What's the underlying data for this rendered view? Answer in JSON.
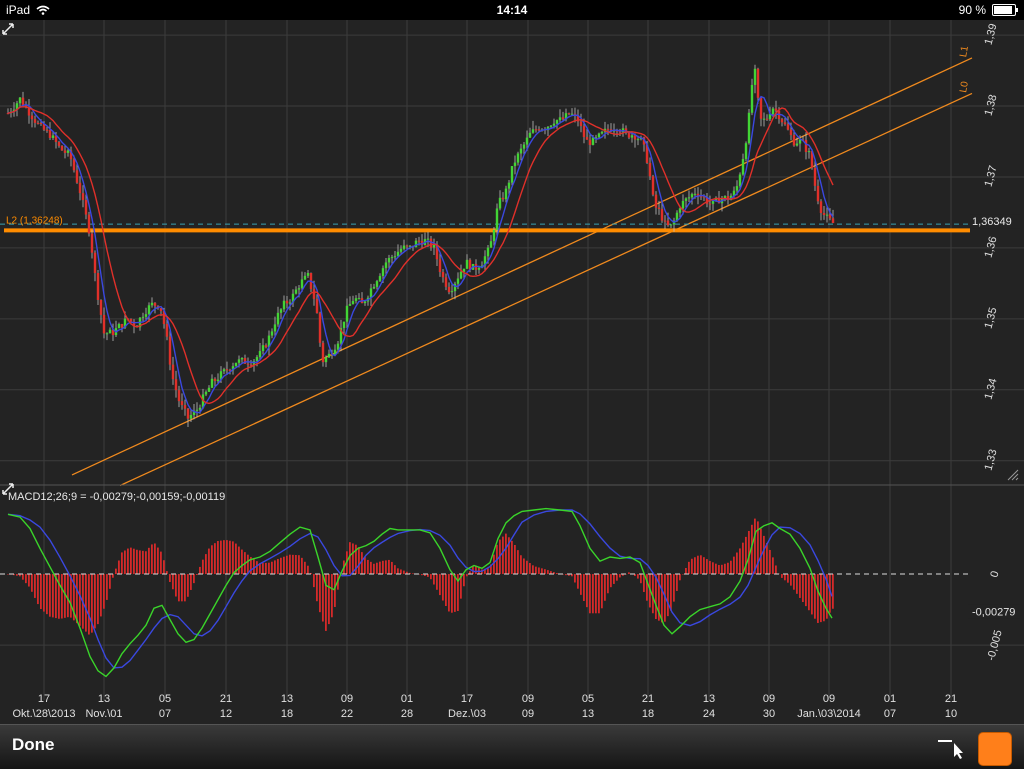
{
  "status_bar": {
    "device": "iPad",
    "time": "14:14",
    "battery": "90 %",
    "battery_level": 0.9
  },
  "toolbar": {
    "done_label": "Done"
  },
  "colors": {
    "background": "#232323",
    "grid": "#3c3c3c",
    "up_candle": "#42d435",
    "down_candle": "#e0302a",
    "ma_fast": "#3a48e0",
    "ma_slow": "#e0302a",
    "trendline": "#f08a1e",
    "horizontal_line": "#ff8c00",
    "dashed_line": "#3aa0b0",
    "macd_line": "#3ad42a",
    "signal_line": "#3a48e0",
    "histogram": "#d42a2a"
  },
  "chart_data": [
    {
      "type": "candlestick",
      "instrument_panel": "price",
      "price_axis": {
        "ylim": [
          1.327,
          1.391
        ],
        "ticks": [
          "1,33",
          "1,34",
          "1,35",
          "1,36",
          "1,37",
          "1,38",
          "1,39"
        ]
      },
      "last_price_label": "1,36349",
      "last_price": 1.36349,
      "horizontal_line": {
        "label": "L2 (1,36248)",
        "value": 1.36248
      },
      "trendlines": [
        {
          "label": "L1",
          "from": [
            72,
            1.328
          ],
          "to": [
            960,
            1.386
          ]
        },
        {
          "label": "L0",
          "from": [
            120,
            1.3265
          ],
          "to": [
            960,
            1.381
          ]
        }
      ],
      "close_path": [
        [
          8,
          1.379
        ],
        [
          20,
          1.381
        ],
        [
          30,
          1.379
        ],
        [
          40,
          1.377
        ],
        [
          50,
          1.376
        ],
        [
          60,
          1.374
        ],
        [
          70,
          1.373
        ],
        [
          80,
          1.368
        ],
        [
          90,
          1.362
        ],
        [
          96,
          1.355
        ],
        [
          104,
          1.348
        ],
        [
          112,
          1.348
        ],
        [
          120,
          1.349
        ],
        [
          128,
          1.35
        ],
        [
          136,
          1.349
        ],
        [
          144,
          1.351
        ],
        [
          152,
          1.352
        ],
        [
          160,
          1.352
        ],
        [
          166,
          1.348
        ],
        [
          172,
          1.342
        ],
        [
          180,
          1.338
        ],
        [
          188,
          1.336
        ],
        [
          196,
          1.337
        ],
        [
          204,
          1.339
        ],
        [
          212,
          1.341
        ],
        [
          220,
          1.342
        ],
        [
          228,
          1.343
        ],
        [
          236,
          1.344
        ],
        [
          244,
          1.344
        ],
        [
          252,
          1.344
        ],
        [
          260,
          1.345
        ],
        [
          268,
          1.347
        ],
        [
          276,
          1.35
        ],
        [
          284,
          1.352
        ],
        [
          292,
          1.353
        ],
        [
          300,
          1.355
        ],
        [
          308,
          1.356
        ],
        [
          316,
          1.352
        ],
        [
          322,
          1.344
        ],
        [
          330,
          1.345
        ],
        [
          338,
          1.347
        ],
        [
          346,
          1.351
        ],
        [
          354,
          1.353
        ],
        [
          362,
          1.352
        ],
        [
          370,
          1.354
        ],
        [
          378,
          1.356
        ],
        [
          386,
          1.358
        ],
        [
          394,
          1.359
        ],
        [
          402,
          1.36
        ],
        [
          410,
          1.36
        ],
        [
          418,
          1.361
        ],
        [
          426,
          1.361
        ],
        [
          434,
          1.36
        ],
        [
          442,
          1.356
        ],
        [
          450,
          1.354
        ],
        [
          458,
          1.356
        ],
        [
          466,
          1.358
        ],
        [
          474,
          1.357
        ],
        [
          482,
          1.358
        ],
        [
          490,
          1.36
        ],
        [
          498,
          1.366
        ],
        [
          506,
          1.368
        ],
        [
          514,
          1.372
        ],
        [
          522,
          1.374
        ],
        [
          530,
          1.376
        ],
        [
          538,
          1.377
        ],
        [
          546,
          1.377
        ],
        [
          554,
          1.378
        ],
        [
          562,
          1.378
        ],
        [
          570,
          1.379
        ],
        [
          578,
          1.378
        ],
        [
          586,
          1.375
        ],
        [
          594,
          1.375
        ],
        [
          602,
          1.376
        ],
        [
          610,
          1.377
        ],
        [
          618,
          1.377
        ],
        [
          626,
          1.376
        ],
        [
          634,
          1.376
        ],
        [
          642,
          1.375
        ],
        [
          648,
          1.372
        ],
        [
          654,
          1.366
        ],
        [
          660,
          1.365
        ],
        [
          666,
          1.363
        ],
        [
          672,
          1.363
        ],
        [
          680,
          1.366
        ],
        [
          688,
          1.367
        ],
        [
          696,
          1.368
        ],
        [
          704,
          1.367
        ],
        [
          712,
          1.366
        ],
        [
          720,
          1.367
        ],
        [
          728,
          1.367
        ],
        [
          736,
          1.368
        ],
        [
          742,
          1.372
        ],
        [
          748,
          1.377
        ],
        [
          754,
          1.386
        ],
        [
          760,
          1.378
        ],
        [
          766,
          1.378
        ],
        [
          772,
          1.38
        ],
        [
          778,
          1.379
        ],
        [
          786,
          1.377
        ],
        [
          794,
          1.375
        ],
        [
          802,
          1.375
        ],
        [
          810,
          1.373
        ],
        [
          816,
          1.368
        ],
        [
          822,
          1.365
        ],
        [
          828,
          1.364
        ],
        [
          833,
          1.3635
        ]
      ]
    },
    {
      "type": "macd",
      "label": "MACD12;26;9 = -0,00279;-0,00159;-0,00119",
      "ylim": [
        -0.0078,
        0.0045
      ],
      "ticks": [
        "0",
        "-0,005"
      ],
      "last_value_label": "-0,00279",
      "last_value": -0.00279,
      "macd": [
        [
          8,
          0.0042
        ],
        [
          20,
          0.004
        ],
        [
          30,
          0.0032
        ],
        [
          40,
          0.0018
        ],
        [
          50,
          0.0005
        ],
        [
          60,
          -0.0008
        ],
        [
          70,
          -0.002
        ],
        [
          80,
          -0.0038
        ],
        [
          90,
          -0.0058
        ],
        [
          98,
          -0.0068
        ],
        [
          106,
          -0.0072
        ],
        [
          114,
          -0.0066
        ],
        [
          122,
          -0.0056
        ],
        [
          130,
          -0.0049
        ],
        [
          138,
          -0.0043
        ],
        [
          146,
          -0.0036
        ],
        [
          154,
          -0.0024
        ],
        [
          162,
          -0.0022
        ],
        [
          170,
          -0.0032
        ],
        [
          178,
          -0.0042
        ],
        [
          186,
          -0.0048
        ],
        [
          194,
          -0.0046
        ],
        [
          202,
          -0.0038
        ],
        [
          210,
          -0.0028
        ],
        [
          218,
          -0.0018
        ],
        [
          226,
          -0.0008
        ],
        [
          234,
          0.0001
        ],
        [
          242,
          0.0006
        ],
        [
          250,
          0.001
        ],
        [
          260,
          0.0012
        ],
        [
          270,
          0.0016
        ],
        [
          280,
          0.0022
        ],
        [
          290,
          0.0028
        ],
        [
          300,
          0.0033
        ],
        [
          310,
          0.0031
        ],
        [
          318,
          0.0012
        ],
        [
          326,
          -0.0008
        ],
        [
          334,
          -0.0011
        ],
        [
          342,
          0.0002
        ],
        [
          350,
          0.0013
        ],
        [
          358,
          0.0018
        ],
        [
          366,
          0.002
        ],
        [
          374,
          0.0023
        ],
        [
          382,
          0.0028
        ],
        [
          390,
          0.0032
        ],
        [
          398,
          0.0031
        ],
        [
          410,
          0.0031
        ],
        [
          420,
          0.0031
        ],
        [
          430,
          0.0029
        ],
        [
          440,
          0.0018
        ],
        [
          450,
          0.0003
        ],
        [
          458,
          -0.0005
        ],
        [
          466,
          0.0003
        ],
        [
          474,
          0.0006
        ],
        [
          482,
          0.0004
        ],
        [
          490,
          0.0008
        ],
        [
          498,
          0.0025
        ],
        [
          506,
          0.0036
        ],
        [
          514,
          0.0041
        ],
        [
          522,
          0.0044
        ],
        [
          534,
          0.0045
        ],
        [
          546,
          0.0046
        ],
        [
          560,
          0.0045
        ],
        [
          572,
          0.0044
        ],
        [
          580,
          0.0034
        ],
        [
          590,
          0.0018
        ],
        [
          600,
          0.0009
        ],
        [
          610,
          0.0012
        ],
        [
          620,
          0.0011
        ],
        [
          630,
          0.0012
        ],
        [
          640,
          0.0008
        ],
        [
          648,
          -0.0007
        ],
        [
          656,
          -0.0022
        ],
        [
          664,
          -0.0036
        ],
        [
          672,
          -0.0042
        ],
        [
          680,
          -0.0037
        ],
        [
          690,
          -0.003
        ],
        [
          700,
          -0.0025
        ],
        [
          710,
          -0.0023
        ],
        [
          720,
          -0.0021
        ],
        [
          730,
          -0.0016
        ],
        [
          740,
          -0.0005
        ],
        [
          748,
          0.001
        ],
        [
          756,
          0.003
        ],
        [
          764,
          0.0034
        ],
        [
          772,
          0.0036
        ],
        [
          780,
          0.0032
        ],
        [
          790,
          0.0028
        ],
        [
          800,
          0.0018
        ],
        [
          810,
          0.0004
        ],
        [
          818,
          -0.0012
        ],
        [
          826,
          -0.0024
        ],
        [
          832,
          -0.0031
        ]
      ]
    }
  ],
  "x_axis": {
    "ticks": [
      {
        "x": 44,
        "top": "17",
        "bottom": "Okt.\\28\\2013"
      },
      {
        "x": 104,
        "top": "13",
        "bottom": "Nov.\\01"
      },
      {
        "x": 165,
        "top": "05",
        "bottom": "07"
      },
      {
        "x": 226,
        "top": "21",
        "bottom": "12"
      },
      {
        "x": 287,
        "top": "13",
        "bottom": "18"
      },
      {
        "x": 347,
        "top": "09",
        "bottom": "22"
      },
      {
        "x": 407,
        "top": "01",
        "bottom": "28"
      },
      {
        "x": 467,
        "top": "17",
        "bottom": "Dez.\\03"
      },
      {
        "x": 528,
        "top": "09",
        "bottom": "09"
      },
      {
        "x": 588,
        "top": "05",
        "bottom": "13"
      },
      {
        "x": 648,
        "top": "21",
        "bottom": "18"
      },
      {
        "x": 709,
        "top": "13",
        "bottom": "24"
      },
      {
        "x": 769,
        "top": "09",
        "bottom": "30"
      },
      {
        "x": 829,
        "top": "09",
        "bottom": "Jan.\\03\\2014"
      },
      {
        "x": 890,
        "top": "01",
        "bottom": "07"
      },
      {
        "x": 951,
        "top": "21",
        "bottom": "10"
      }
    ]
  }
}
